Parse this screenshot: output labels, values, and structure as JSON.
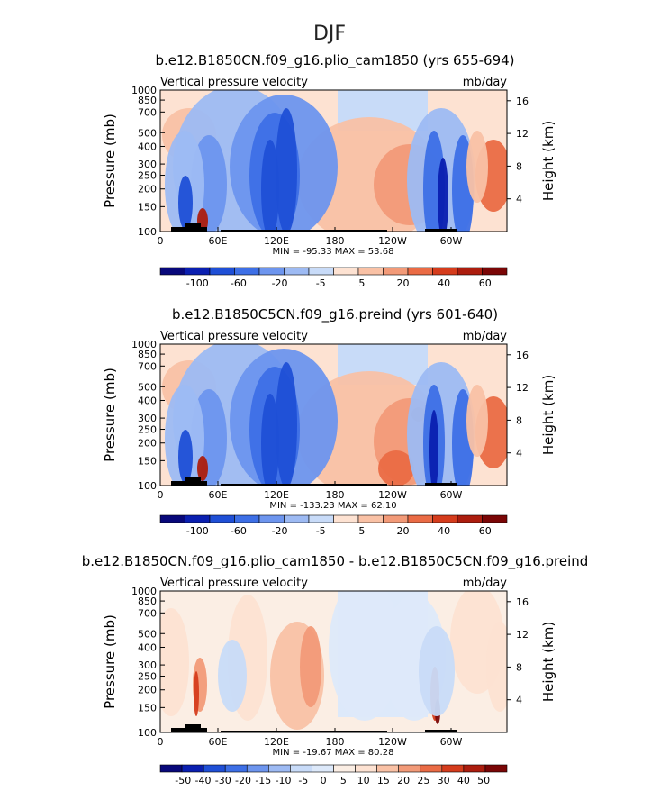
{
  "season": "DJF",
  "colors": {
    "abs_scale": [
      "#08087a",
      "#0a1fb0",
      "#1f4fd6",
      "#3d6fe6",
      "#6d95ee",
      "#9dbaf3",
      "#c8dbf8",
      "#fde2d2",
      "#f9c1a5",
      "#f29a78",
      "#ea6b45",
      "#d53c1c",
      "#ac1d0e",
      "#7a0606"
    ],
    "diff_scale": [
      "#08087a",
      "#0a1fb0",
      "#1f4fd6",
      "#3d6fe6",
      "#6d95ee",
      "#9dbaf3",
      "#c8dbf8",
      "#dde9fa",
      "#fbeee4",
      "#fde2d2",
      "#f9c1a5",
      "#f29a78",
      "#ea6b45",
      "#d53c1c",
      "#ac1d0e",
      "#7a0606"
    ]
  },
  "chart_data": [
    {
      "type": "heatmap",
      "title": "b.e12.B1850CN.f09_g16.plio_cam1850 (yrs 655-694)",
      "left_label": "Vertical pressure velocity",
      "right_label": "mb/day",
      "ylabel": "Pressure (mb)",
      "ylabel_right": "Height (km)",
      "x_ticks": [
        "0",
        "60E",
        "120E",
        "180",
        "120W",
        "60W"
      ],
      "y_ticks": [
        "100",
        "150",
        "200",
        "250",
        "300",
        "400",
        "500",
        "700",
        "850",
        "1000"
      ],
      "y_right_ticks": [
        "16",
        "12",
        "8",
        "4"
      ],
      "stats": "MIN = -95.33   MAX =  53.68",
      "colorbar_labels": [
        "-100",
        "-60",
        "-20",
        "-5",
        "5",
        "20",
        "40",
        "60"
      ]
    },
    {
      "type": "heatmap",
      "title": "b.e12.B1850C5CN.f09_g16.preind (yrs 601-640)",
      "left_label": "Vertical pressure velocity",
      "right_label": "mb/day",
      "ylabel": "Pressure (mb)",
      "ylabel_right": "Height (km)",
      "x_ticks": [
        "0",
        "60E",
        "120E",
        "180",
        "120W",
        "60W"
      ],
      "y_ticks": [
        "100",
        "150",
        "200",
        "250",
        "300",
        "400",
        "500",
        "700",
        "850",
        "1000"
      ],
      "y_right_ticks": [
        "16",
        "12",
        "8",
        "4"
      ],
      "stats": "MIN = -133.23   MAX =  62.10",
      "colorbar_labels": [
        "-100",
        "-60",
        "-20",
        "-5",
        "5",
        "20",
        "40",
        "60"
      ]
    },
    {
      "type": "heatmap",
      "title": "b.e12.B1850CN.f09_g16.plio_cam1850 - b.e12.B1850C5CN.f09_g16.preind",
      "left_label": "Vertical pressure velocity",
      "right_label": "mb/day",
      "ylabel": "Pressure (mb)",
      "ylabel_right": "Height (km)",
      "x_ticks": [
        "0",
        "60E",
        "120E",
        "180",
        "120W",
        "60W"
      ],
      "y_ticks": [
        "100",
        "150",
        "200",
        "250",
        "300",
        "400",
        "500",
        "700",
        "850",
        "1000"
      ],
      "y_right_ticks": [
        "16",
        "12",
        "8",
        "4"
      ],
      "stats": "MIN = -19.67   MAX =  80.28",
      "colorbar_labels": [
        "-50",
        "-40",
        "-30",
        "-20",
        "-15",
        "-10",
        "-5",
        "0",
        "5",
        "10",
        "15",
        "20",
        "25",
        "30",
        "40",
        "50"
      ]
    }
  ]
}
